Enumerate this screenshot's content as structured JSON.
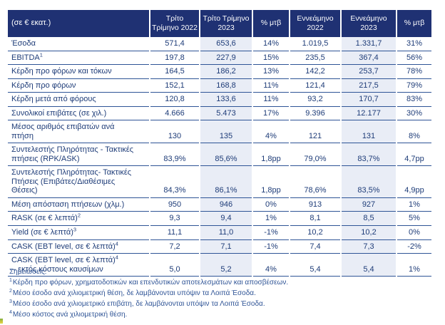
{
  "table": {
    "unit_label": "(σε € εκατ.)",
    "col_headers": [
      "Τρίτο Τρίμηνο 2022",
      "Τρίτο Τρίμηνο 2023",
      "% μτβ",
      "Εννεάμηνο 2022",
      "Εννεάμηνο 2023",
      "% μτβ"
    ],
    "shaded_columns_note": "Τρίτο Τρίμηνο 2023 and Εννεάμηνο 2023 columns are shaded",
    "rows": [
      {
        "label": "Έσοδα",
        "values": [
          "571,4",
          "653,6",
          "14%",
          "1.019,5",
          "1.331,7",
          "31%"
        ]
      },
      {
        "label": "EBITDA",
        "sup": "1",
        "values": [
          "197,8",
          "227,9",
          "15%",
          "235,5",
          "367,4",
          "56%"
        ]
      },
      {
        "label": "Κέρδη προ φόρων και τόκων",
        "values": [
          "164,5",
          "186,2",
          "13%",
          "142,2",
          "253,7",
          "78%"
        ]
      },
      {
        "label": "Κέρδη προ φόρων",
        "values": [
          "152,1",
          "168,8",
          "11%",
          "121,4",
          "217,5",
          "79%"
        ]
      },
      {
        "label": "Κέρδη μετά από φόρους",
        "values": [
          "120,8",
          "133,6",
          "11%",
          "93,2",
          "170,7",
          "83%"
        ]
      },
      {
        "label": "Συνολικοί επιβάτες (σε χιλ.)",
        "values": [
          "4.666",
          "5.473",
          "17%",
          "9.396",
          "12.177",
          "30%"
        ]
      },
      {
        "label": "Μέσος αριθμός επιβατών ανά\nπτήση",
        "values": [
          "130",
          "135",
          "4%",
          "121",
          "131",
          "8%"
        ]
      },
      {
        "label": "Συντελεστής Πληρότητας - Τακτικές\nπτήσεις (RPK/ASK)",
        "values": [
          "83,9%",
          "85,6%",
          "1,8pp",
          "79,0%",
          "83,7%",
          "4,7pp"
        ]
      },
      {
        "label": "Συντελεστής Πληρότητας- Τακτικές\nΠτήσεις (Επιβάτες/Διαθέσιμες\nΘέσεις)",
        "values": [
          "84,3%",
          "86,1%",
          "1,8pp",
          "78,6%",
          "83,5%",
          "4,9pp"
        ]
      },
      {
        "label": "Μέση απόσταση πτήσεων (χλμ.)",
        "values": [
          "950",
          "946",
          "0%",
          "913",
          "927",
          "1%"
        ]
      },
      {
        "label": "RASK (σε € λεπτά)",
        "sup": "2",
        "values": [
          "9,3",
          "9,4",
          "1%",
          "8,1",
          "8,5",
          "5%"
        ]
      },
      {
        "label": "Yield (σε € λεπτά)",
        "sup": "3",
        "values": [
          "11,1",
          "11,0",
          "-1%",
          "10,2",
          "10,2",
          "0%"
        ]
      },
      {
        "label": "CASK (EBT level, σε € λεπτά)",
        "sup": "4",
        "values": [
          "7,2",
          "7,1",
          "-1%",
          "7,4",
          "7,3",
          "-2%"
        ]
      },
      {
        "label": "CASK (EBT level, σε € λεπτά)",
        "sup": "4",
        "label2": "– εκτός κόστους καυσίμων",
        "values": [
          "5,0",
          "5,2",
          "4%",
          "5,4",
          "5,4",
          "1%"
        ]
      }
    ]
  },
  "footnotes": {
    "heading": "Σημειώσεις:",
    "items": [
      {
        "sup": "1",
        "text": "Κέρδη προ φόρων, χρηματοδοτικών και επενδυτικών αποτελεσμάτων και αποσβέσεων."
      },
      {
        "sup": "2",
        "text": "Μέσο έσοδο ανά χιλιομετρική θέση, δε λαμβάνονται υπόψιν τα Λοιπά Έσοδα."
      },
      {
        "sup": "3",
        "text": "Μέσο έσοδο ανά χιλιομετρικό επιβάτη, δε λαμβάνονται υπόψιν τα Λοιπά Έσοδα."
      },
      {
        "sup": "4",
        "text": "Μέσο κόστος ανά χιλιομετρική θέση."
      }
    ]
  },
  "colors": {
    "header_bg": "#1f3173",
    "header_text": "#ffffff",
    "body_text": "#1e3c78",
    "row_rule": "#2e5496",
    "shaded_column_bg": "#e9edf6",
    "footnote_text": "#2f5496"
  }
}
